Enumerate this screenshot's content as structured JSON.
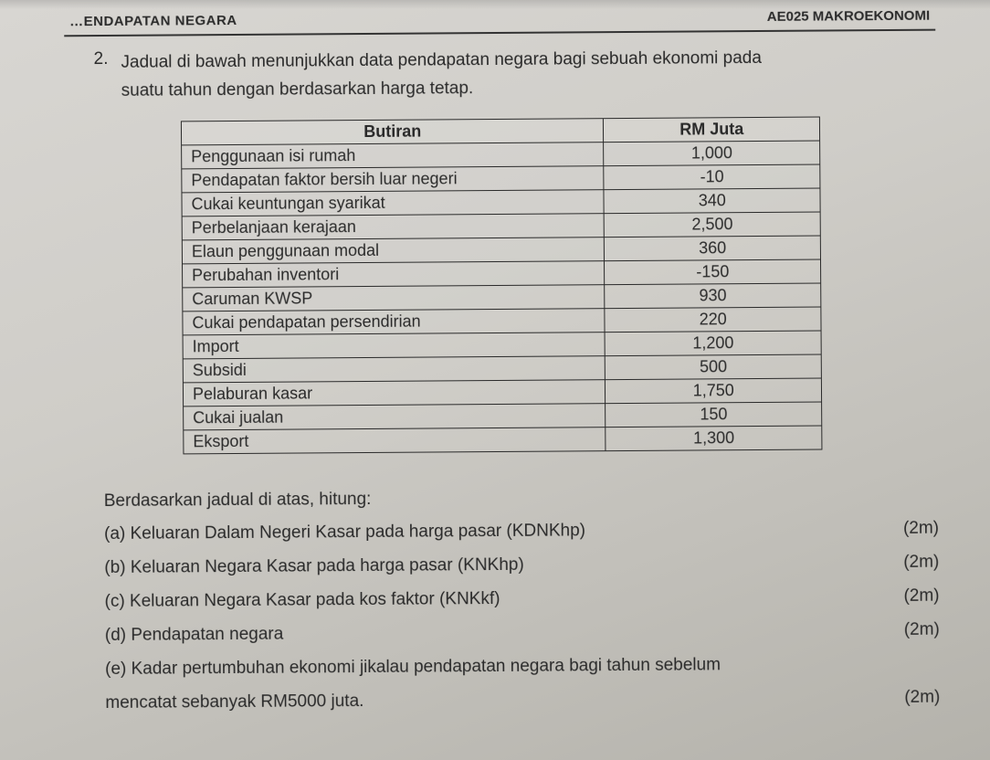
{
  "header": {
    "left": "…ENDAPATAN NEGARA",
    "right": "AE025 MAKROEKONOMI"
  },
  "question": {
    "number": "2.",
    "line1": "Jadual di bawah menunjukkan data pendapatan negara bagi sebuah ekonomi pada",
    "line2": "suatu tahun dengan berdasarkan harga tetap."
  },
  "table": {
    "head_c1": "Butiran",
    "head_c2": "RM Juta",
    "rows": [
      {
        "label": "Penggunaan isi rumah",
        "value": "1,000"
      },
      {
        "label": "Pendapatan faktor bersih luar negeri",
        "value": "-10"
      },
      {
        "label": "Cukai keuntungan syarikat",
        "value": "340"
      },
      {
        "label": "Perbelanjaan kerajaan",
        "value": "2,500"
      },
      {
        "label": "Elaun penggunaan modal",
        "value": "360"
      },
      {
        "label": "Perubahan inventori",
        "value": "-150"
      },
      {
        "label": "Caruman KWSP",
        "value": "930"
      },
      {
        "label": "Cukai pendapatan persendirian",
        "value": "220"
      },
      {
        "label": "Import",
        "value": "1,200"
      },
      {
        "label": "Subsidi",
        "value": "500"
      },
      {
        "label": "Pelaburan kasar",
        "value": "1,750"
      },
      {
        "label": "Cukai jualan",
        "value": "150"
      },
      {
        "label": "Eksport",
        "value": "1,300"
      }
    ]
  },
  "subs": {
    "intro": "Berdasarkan jadual di atas, hitung:",
    "a": "(a) Keluaran Dalam Negeri Kasar pada harga pasar (KDNKhp)",
    "b": "(b) Keluaran Negara Kasar pada harga pasar (KNKhp)",
    "c": "(c) Keluaran Negara Kasar pada kos faktor (KNKkf)",
    "d": "(d) Pendapatan negara",
    "e": "(e) Kadar pertumbuhan ekonomi jikalau pendapatan negara bagi tahun sebelum",
    "e2": "mencatat sebanyak RM5000 juta.",
    "m2": "(2m)"
  }
}
